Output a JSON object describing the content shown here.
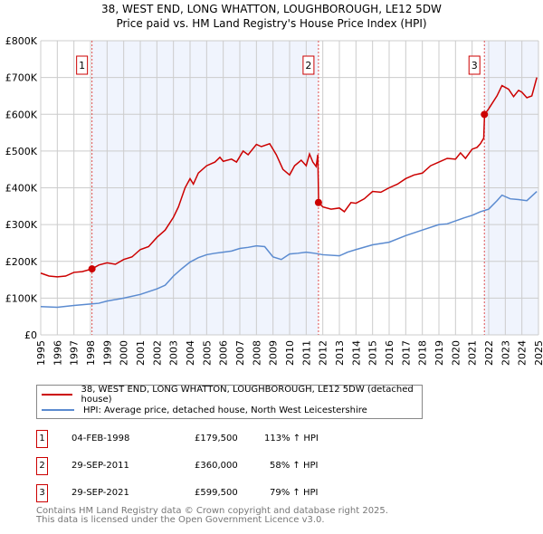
{
  "chart_data": {
    "type": "line",
    "title": "38, WEST END, LONG WHATTON, LOUGHBOROUGH, LE12 5DW",
    "subtitle": "Price paid vs. HM Land Registry's House Price Index (HPI)",
    "xlim": [
      1995,
      2025
    ],
    "ylim": [
      0,
      800000
    ],
    "x_ticks": [
      "1995",
      "1996",
      "1997",
      "1998",
      "1999",
      "2000",
      "2001",
      "2002",
      "2003",
      "2004",
      "2005",
      "2006",
      "2007",
      "2008",
      "2009",
      "2010",
      "2011",
      "2012",
      "2013",
      "2014",
      "2015",
      "2016",
      "2017",
      "2018",
      "2019",
      "2020",
      "2021",
      "2022",
      "2023",
      "2024",
      "2025"
    ],
    "y_ticks": [
      {
        "v": 0,
        "l": "£0"
      },
      {
        "v": 100000,
        "l": "£100K"
      },
      {
        "v": 200000,
        "l": "£200K"
      },
      {
        "v": 300000,
        "l": "£300K"
      },
      {
        "v": 400000,
        "l": "£400K"
      },
      {
        "v": 500000,
        "l": "£500K"
      },
      {
        "v": 600000,
        "l": "£600K"
      },
      {
        "v": 700000,
        "l": "£700K"
      },
      {
        "v": 800000,
        "l": "£800K"
      }
    ],
    "grid": true,
    "series": [
      {
        "name": "38, WEST END, LONG WHATTON, LOUGHBOROUGH, LE12 5DW (detached house)",
        "color": "#cc0000",
        "x": [
          1995,
          1995.5,
          1996,
          1996.5,
          1997,
          1997.5,
          1998.1,
          1998.5,
          1999,
          1999.5,
          2000,
          2000.5,
          2001,
          2001.5,
          2002,
          2002.5,
          2003,
          2003.3,
          2003.7,
          2004,
          2004.2,
          2004.5,
          2005,
          2005.5,
          2005.8,
          2006,
          2006.5,
          2006.8,
          2007.2,
          2007.5,
          2008,
          2008.3,
          2008.8,
          2009.2,
          2009.6,
          2010,
          2010.3,
          2010.7,
          2011,
          2011.2,
          2011.4,
          2011.6,
          2011.7,
          2011.75,
          2012,
          2012.5,
          2013,
          2013.3,
          2013.7,
          2014,
          2014.5,
          2015,
          2015.5,
          2016,
          2016.5,
          2017,
          2017.5,
          2018,
          2018.5,
          2019,
          2019.5,
          2020,
          2020.3,
          2020.6,
          2021,
          2021.3,
          2021.5,
          2021.7,
          2021.75,
          2022,
          2022.5,
          2022.8,
          2023.2,
          2023.5,
          2023.8,
          2024,
          2024.3,
          2024.6,
          2024.9
        ],
        "y": [
          168000,
          160000,
          158000,
          160000,
          170000,
          172000,
          179500,
          190000,
          196000,
          192000,
          205000,
          212000,
          232000,
          240000,
          265000,
          285000,
          320000,
          348000,
          400000,
          425000,
          410000,
          440000,
          460000,
          470000,
          483000,
          472000,
          478000,
          470000,
          500000,
          490000,
          518000,
          512000,
          520000,
          490000,
          450000,
          435000,
          460000,
          475000,
          460000,
          492000,
          470000,
          458000,
          490000,
          360000,
          348000,
          342000,
          345000,
          335000,
          360000,
          358000,
          370000,
          390000,
          388000,
          400000,
          410000,
          425000,
          435000,
          440000,
          460000,
          470000,
          480000,
          478000,
          495000,
          480000,
          505000,
          510000,
          520000,
          535000,
          599500,
          615000,
          650000,
          678000,
          668000,
          648000,
          665000,
          660000,
          645000,
          650000,
          700000
        ]
      },
      {
        "name": "HPI: Average price, detached house, North West Leicestershire",
        "color": "#5b8bd0",
        "x": [
          1995,
          1996,
          1997,
          1998,
          1998.5,
          1999,
          2000,
          2001,
          2002,
          2002.5,
          2003,
          2003.5,
          2004,
          2004.5,
          2005,
          2005.5,
          2006,
          2006.5,
          2007,
          2007.5,
          2008,
          2008.5,
          2009,
          2009.5,
          2010,
          2010.5,
          2011,
          2011.5,
          2012,
          2013,
          2013.5,
          2014,
          2015,
          2016,
          2017,
          2018,
          2019,
          2019.5,
          2020,
          2020.5,
          2021,
          2021.5,
          2022,
          2022.5,
          2022.8,
          2023.3,
          2023.8,
          2024.3,
          2024.9
        ],
        "y": [
          77000,
          75000,
          80000,
          84000,
          86000,
          92000,
          100000,
          110000,
          125000,
          135000,
          160000,
          180000,
          198000,
          210000,
          218000,
          222000,
          225000,
          228000,
          235000,
          238000,
          242000,
          240000,
          212000,
          205000,
          220000,
          222000,
          225000,
          222000,
          218000,
          215000,
          225000,
          232000,
          245000,
          252000,
          270000,
          285000,
          300000,
          302000,
          310000,
          318000,
          325000,
          335000,
          342000,
          365000,
          380000,
          370000,
          368000,
          365000,
          390000
        ]
      }
    ],
    "sales": [
      {
        "label": "1",
        "x": 1998.09,
        "y": 179500,
        "date": "04-FEB-1998",
        "price": "£179,500",
        "hpi": "113% ↑ HPI"
      },
      {
        "label": "2",
        "x": 2011.74,
        "y": 360000,
        "date": "29-SEP-2011",
        "price": "£360,000",
        "hpi": "58% ↑ HPI"
      },
      {
        "label": "3",
        "x": 2021.74,
        "y": 599500,
        "date": "29-SEP-2021",
        "price": "£599,500",
        "hpi": "79% ↑ HPI"
      }
    ],
    "legend_position": "below"
  },
  "footer": {
    "line1": "Contains HM Land Registry data © Crown copyright and database right 2025.",
    "line2": "This data is licensed under the Open Government Licence v3.0."
  }
}
